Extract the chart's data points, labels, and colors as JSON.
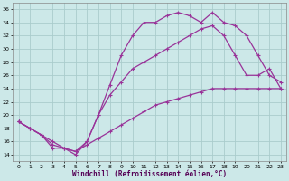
{
  "xlabel": "Windchill (Refroidissement éolien,°C)",
  "bg_color": "#cce8e8",
  "grid_color": "#aacccc",
  "line_color": "#993399",
  "xlim": [
    -0.5,
    23.5
  ],
  "ylim": [
    13,
    37
  ],
  "xticks": [
    0,
    1,
    2,
    3,
    4,
    5,
    6,
    7,
    8,
    9,
    10,
    11,
    12,
    13,
    14,
    15,
    16,
    17,
    18,
    19,
    20,
    21,
    22,
    23
  ],
  "yticks": [
    14,
    16,
    18,
    20,
    22,
    24,
    26,
    28,
    30,
    32,
    34,
    36
  ],
  "line1_x": [
    0,
    1,
    2,
    3,
    4,
    5,
    6,
    7,
    8,
    9,
    10,
    11,
    12,
    13,
    14,
    15,
    16,
    17,
    18,
    19,
    20,
    21,
    22,
    23
  ],
  "line1_y": [
    19,
    18,
    17,
    15,
    15,
    14,
    16,
    20,
    24.5,
    29,
    32,
    34,
    34,
    35,
    35.5,
    35,
    34,
    35.5,
    34,
    33.5,
    32,
    29,
    26,
    25
  ],
  "line2_x": [
    0,
    1,
    2,
    3,
    4,
    5,
    6,
    7,
    8,
    9,
    10,
    11,
    12,
    13,
    14,
    15,
    16,
    17,
    18,
    19,
    20,
    21,
    22,
    23
  ],
  "line2_y": [
    19,
    18,
    17,
    15.5,
    15,
    14.5,
    16,
    20,
    23,
    25,
    27,
    28,
    29,
    30,
    31,
    32,
    33,
    33.5,
    32,
    29,
    26,
    26,
    27,
    24
  ],
  "line3_x": [
    0,
    1,
    2,
    3,
    4,
    5,
    6,
    7,
    8,
    9,
    10,
    11,
    12,
    13,
    14,
    15,
    16,
    17,
    18,
    19,
    20,
    21,
    22,
    23
  ],
  "line3_y": [
    19,
    18,
    17,
    16,
    15,
    14.5,
    15.5,
    16.5,
    17.5,
    18.5,
    19.5,
    20.5,
    21.5,
    22,
    22.5,
    23,
    23.5,
    24,
    24,
    24,
    24,
    24,
    24,
    24
  ]
}
